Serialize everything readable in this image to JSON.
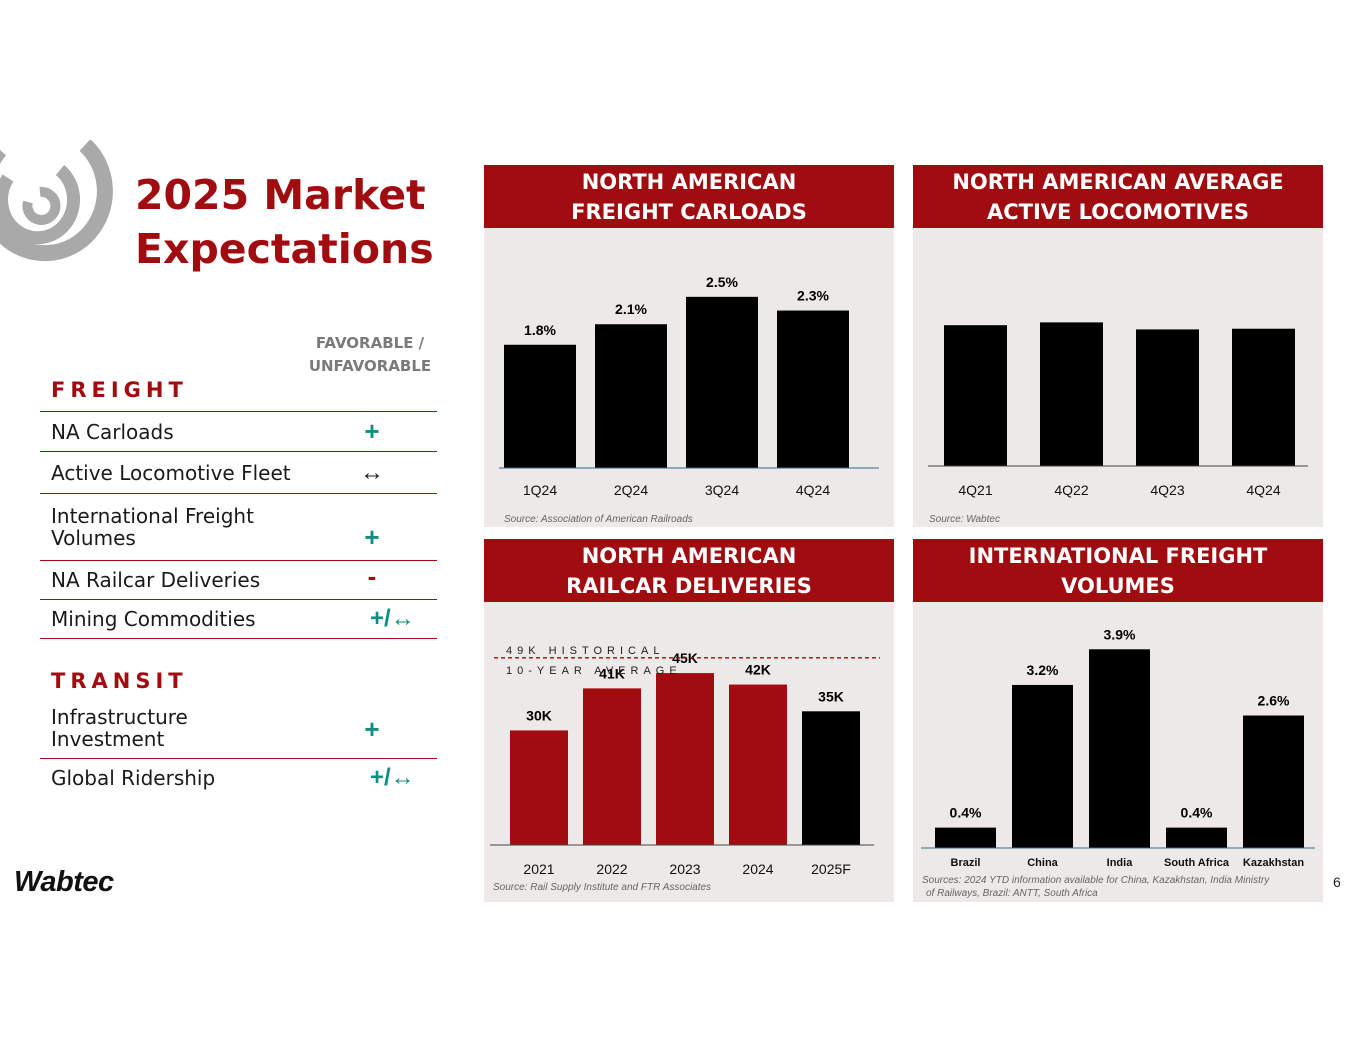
{
  "title_line1": "2025 Market",
  "title_line2": "Expectations",
  "fav_header_line1": "FAVORABLE /",
  "fav_header_line2": "UNFAVORABLE",
  "freight_label": "FREIGHT",
  "transit_label": "TRANSIT",
  "freight_rows": [
    {
      "label": "NA Carloads",
      "indicator": "+"
    },
    {
      "label": "Active Locomotive Fleet",
      "indicator": "↔"
    },
    {
      "label": "International Freight Volumes",
      "indicator": "+"
    },
    {
      "label": "NA Railcar Deliveries",
      "indicator": "-"
    },
    {
      "label": "Mining Commodities",
      "indicator": "+/↔"
    }
  ],
  "transit_rows": [
    {
      "label": "Infrastructure Investment",
      "indicator": "+"
    },
    {
      "label": "Global Ridership",
      "indicator": "+/↔"
    }
  ],
  "logo_text": "Wabtec",
  "page_number": "6",
  "colors": {
    "brand_red": "#a00c0f",
    "favorable_teal": "#0f8e82",
    "panel_bg": "#ece9e8",
    "bar_black": "#000000"
  },
  "chart_data": [
    {
      "id": "carloads",
      "type": "bar",
      "title_line1": "NORTH AMERICAN",
      "title_line2": "FREIGHT CARLOADS",
      "categories": [
        "1Q24",
        "2Q24",
        "3Q24",
        "4Q24"
      ],
      "values": [
        1.8,
        2.1,
        2.5,
        2.3
      ],
      "data_labels": [
        "1.8%",
        "2.1%",
        "2.5%",
        "2.3%"
      ],
      "ylim": [
        0,
        2.6
      ],
      "source": "Source: Association of American Railroads"
    },
    {
      "id": "locomotives",
      "type": "bar",
      "title_line1": "NORTH AMERICAN AVERAGE",
      "title_line2": "ACTIVE LOCOMOTIVES",
      "categories": [
        "4Q21",
        "4Q22",
        "4Q23",
        "4Q24"
      ],
      "values": [
        100,
        102,
        97,
        97.5
      ],
      "ylim": [
        0,
        125
      ],
      "source": "Source: Wabtec"
    },
    {
      "id": "railcars",
      "type": "bar",
      "title_line1": "NORTH AMERICAN",
      "title_line2": "RAILCAR DELIVERIES",
      "categories": [
        "2021",
        "2022",
        "2023",
        "2024",
        "2025F"
      ],
      "values": [
        30,
        41,
        45,
        42,
        35
      ],
      "data_labels": [
        "30K",
        "41K",
        "45K",
        "42K",
        "35K"
      ],
      "bar_colors": [
        "#a00c0f",
        "#a00c0f",
        "#a00c0f",
        "#a00c0f",
        "#000000"
      ],
      "reference_value": 49,
      "reference_label_line1": "49K HISTORICAL",
      "reference_label_line2": "10-YEAR AVERAGE",
      "ylim": [
        0,
        50
      ],
      "source": "Source: Rail Supply Institute and FTR Associates"
    },
    {
      "id": "international",
      "type": "bar",
      "title_line1": "INTERNATIONAL FREIGHT",
      "title_line2": "VOLUMES",
      "categories": [
        "Brazil",
        "China",
        "India",
        "South Africa",
        "Kazakhstan"
      ],
      "values": [
        0.4,
        3.2,
        3.9,
        0.4,
        2.6
      ],
      "data_labels": [
        "0.4%",
        "3.2%",
        "3.9%",
        "0.4%",
        "2.6%"
      ],
      "ylim": [
        0,
        4.2
      ],
      "source_line1": "Sources: 2024 YTD  information available for China, Kazakhstan, India Ministry",
      "source_line2": "of Railways, Brazil: ANTT, South Africa"
    }
  ]
}
